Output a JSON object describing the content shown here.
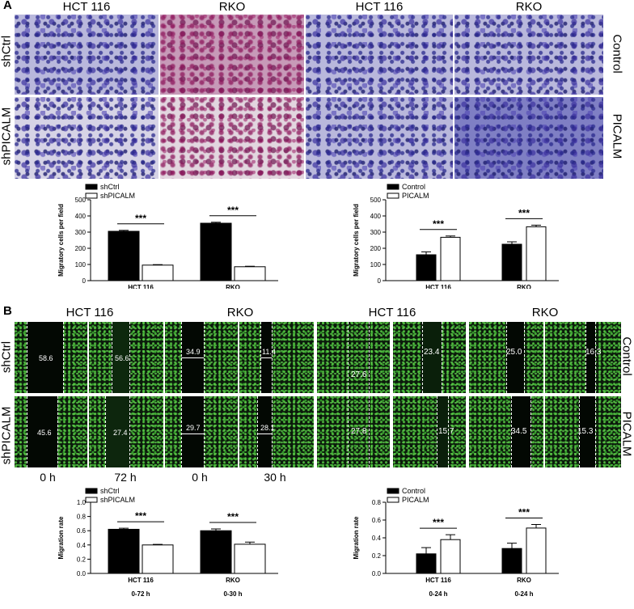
{
  "panel_a": {
    "letter": "A",
    "col_heads": [
      "HCT 116",
      "RKO",
      "HCT 116",
      "RKO"
    ],
    "left_rows": [
      "shCtrl",
      "shPICALM"
    ],
    "right_rows": [
      "Control",
      "PICALM"
    ]
  },
  "panel_b": {
    "letter": "B",
    "col_heads": [
      "HCT 116",
      "RKO",
      "HCT 116",
      "RKO"
    ],
    "left_rows": [
      "shCtrl",
      "shPICALM"
    ],
    "right_rows": [
      "Control",
      "PICALM"
    ],
    "time_labels": [
      "0 h",
      "72 h",
      "0 h",
      "30 h"
    ],
    "left_image_values": {
      "row1": [
        "58.6",
        "56.6",
        "34.9",
        "11.4"
      ],
      "row2": [
        "45.6",
        "27.4",
        "29.7",
        "28.1"
      ]
    },
    "right_image_values": {
      "row1": [
        "27.6",
        "23.4",
        "25.0",
        "16.3"
      ],
      "row2": [
        "27.8",
        "15.7",
        "34.5",
        "15.3"
      ]
    }
  },
  "chart_data": [
    {
      "type": "bar",
      "categories": [
        "HCT 116",
        "RKO"
      ],
      "series": [
        {
          "name": "shCtrl",
          "values": [
            305,
            355
          ],
          "errors": [
            6,
            6
          ]
        },
        {
          "name": "shPICALM",
          "values": [
            96,
            86
          ],
          "errors": [
            3,
            3
          ]
        }
      ],
      "ylabel": "Migratory cells per field",
      "ylim": [
        0,
        500
      ],
      "yticks": [
        0,
        100,
        200,
        300,
        400,
        500
      ],
      "significance": [
        "***",
        "***"
      ],
      "legend_placement": "top-left",
      "subcategory_labels": [],
      "colors": [
        "#000000",
        "#ffffff"
      ]
    },
    {
      "type": "bar",
      "categories": [
        "HCT 116",
        "RKO"
      ],
      "series": [
        {
          "name": "Control",
          "values": [
            160,
            225
          ],
          "errors": [
            18,
            15
          ]
        },
        {
          "name": "PICALM",
          "values": [
            268,
            333
          ],
          "errors": [
            8,
            10
          ]
        }
      ],
      "ylabel": "Migratory cells per field",
      "ylim": [
        0,
        500
      ],
      "yticks": [
        0,
        100,
        200,
        300,
        400,
        500
      ],
      "significance": [
        "***",
        "***"
      ],
      "legend_placement": "top-left",
      "subcategory_labels": [],
      "colors": [
        "#000000",
        "#ffffff"
      ]
    },
    {
      "type": "bar",
      "categories": [
        "HCT 116",
        "RKO"
      ],
      "series": [
        {
          "name": "shCtrl",
          "values": [
            0.62,
            0.6
          ],
          "errors": [
            0.015,
            0.025
          ]
        },
        {
          "name": "shPICALM",
          "values": [
            0.4,
            0.41
          ],
          "errors": [
            0.008,
            0.03
          ]
        }
      ],
      "ylabel": "Migration rate",
      "ylim": [
        0,
        1.0
      ],
      "yticks": [
        "0.0",
        "0.2",
        "0.4",
        "0.6",
        "0.8",
        "1.0"
      ],
      "significance": [
        "***",
        "***"
      ],
      "legend_placement": "top-left",
      "subcategory_labels": [
        "0-72 h",
        "0-30 h"
      ],
      "colors": [
        "#000000",
        "#ffffff"
      ]
    },
    {
      "type": "bar",
      "categories": [
        "HCT 116",
        "RKO"
      ],
      "series": [
        {
          "name": "Control",
          "values": [
            0.22,
            0.28
          ],
          "errors": [
            0.07,
            0.06
          ]
        },
        {
          "name": "PICALM",
          "values": [
            0.38,
            0.51
          ],
          "errors": [
            0.055,
            0.04
          ]
        }
      ],
      "ylabel": "Migration rate",
      "ylim": [
        0,
        0.8
      ],
      "yticks": [
        "0.0",
        "0.2",
        "0.4",
        "0.6",
        "0.8"
      ],
      "significance": [
        "***",
        "***"
      ],
      "legend_placement": "top-left",
      "subcategory_labels": [
        "0-24 h",
        "0-24 h"
      ],
      "colors": [
        "#000000",
        "#ffffff"
      ]
    }
  ]
}
